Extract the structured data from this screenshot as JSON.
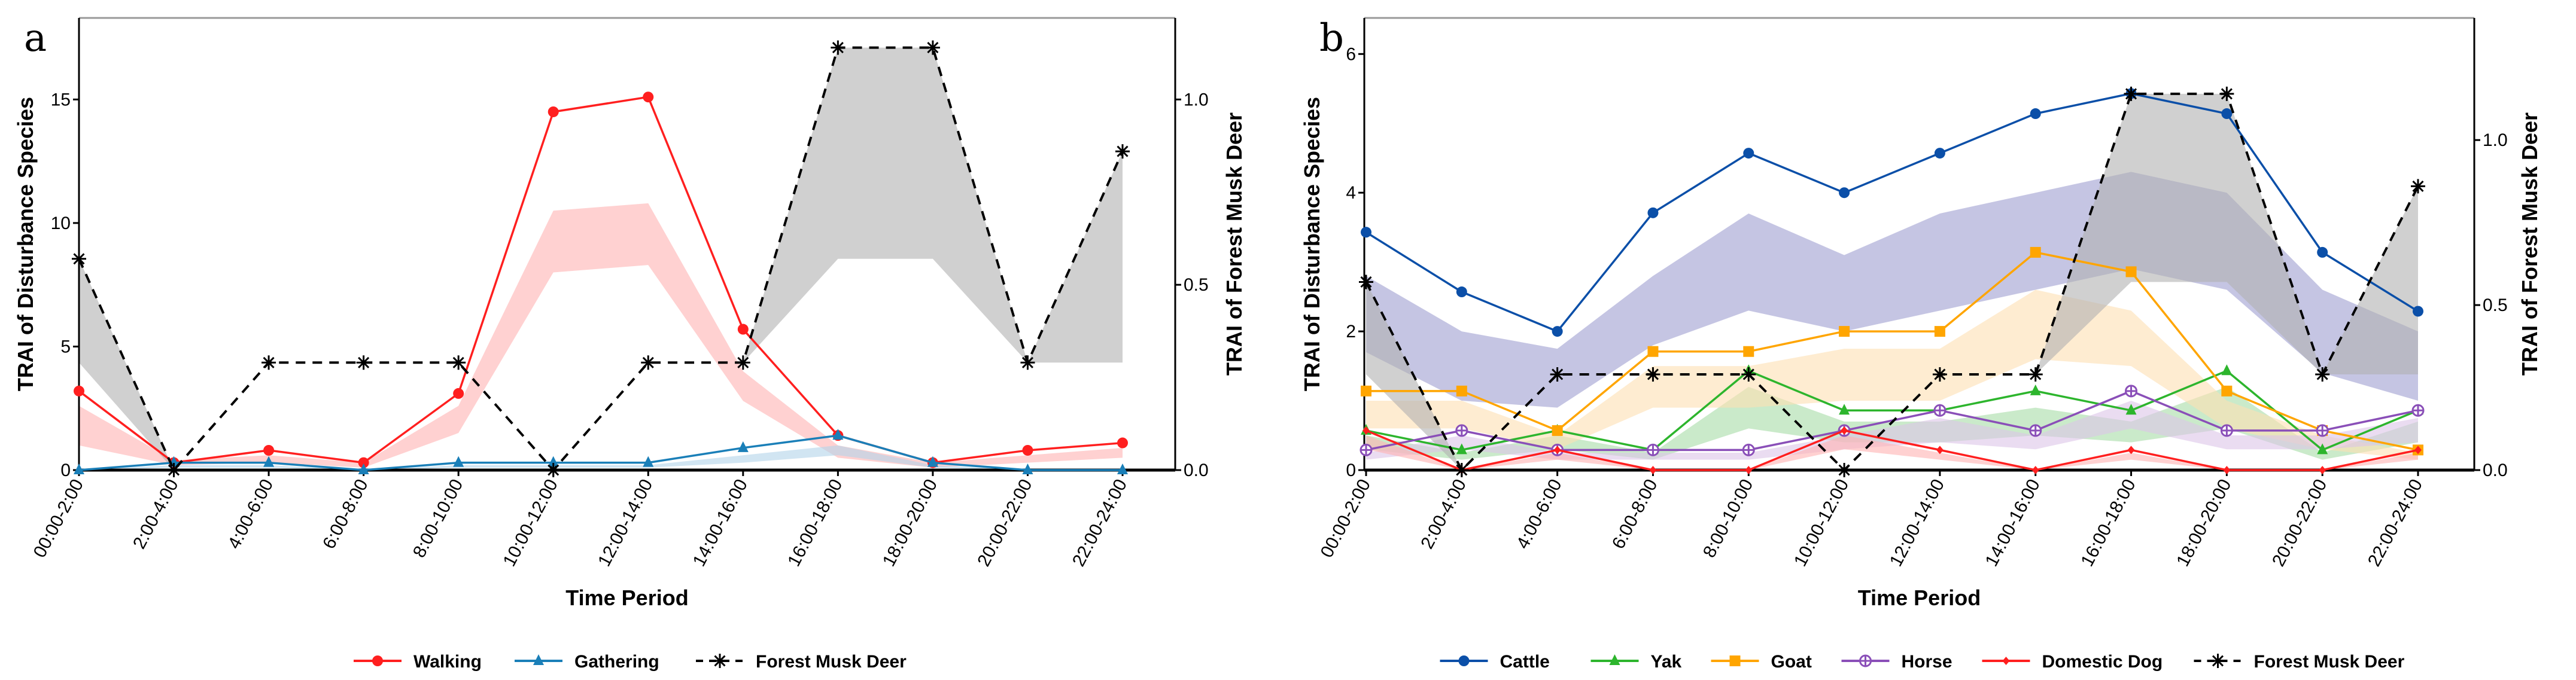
{
  "chart_data": [
    {
      "type": "line",
      "panel_label": "a",
      "xlabel": "Time Period",
      "ylabel": "TRAI of Disturbance Species",
      "y2label": "TRAI of Forest Musk Deer",
      "categories": [
        "00:00-2:00",
        "2:00-4:00",
        "4:00-6:00",
        "6:00-8:00",
        "8:00-10:00",
        "10:00-12:00",
        "12:00-14:00",
        "14:00-16:00",
        "16:00-18:00",
        "18:00-20:00",
        "20:00-22:00",
        "22:00-24:00"
      ],
      "ylim": [
        0,
        18.3
      ],
      "yticks": [
        0,
        5,
        10,
        15
      ],
      "y2lim": [
        0,
        1.22
      ],
      "y2ticks": [
        "0.0",
        "0.5",
        "1.0"
      ],
      "legend_position": "bottom",
      "series": [
        {
          "name": "Walking",
          "axis": "left",
          "color": "#ff1f1f",
          "marker": "circle",
          "dashed": false,
          "values": [
            3.2,
            0.3,
            0.8,
            0.3,
            3.1,
            14.5,
            15.1,
            5.7,
            1.4,
            0.3,
            0.8,
            1.1
          ],
          "band_lower": [
            1.0,
            0.2,
            0.3,
            0.1,
            1.5,
            8.0,
            8.3,
            2.8,
            0.5,
            0.1,
            0.3,
            0.5
          ],
          "band_upper": [
            2.6,
            0.4,
            0.6,
            0.3,
            2.6,
            10.5,
            10.8,
            4.0,
            1.0,
            0.3,
            0.6,
            0.9
          ],
          "band_color": "#ffb3b3"
        },
        {
          "name": "Gathering",
          "axis": "left",
          "color": "#1a7fb8",
          "marker": "triangle",
          "dashed": false,
          "values": [
            0,
            0.3,
            0.3,
            0,
            0.3,
            0.3,
            0.3,
            0.9,
            1.4,
            0.3,
            0,
            0
          ],
          "band_lower": [
            0,
            0.1,
            0.1,
            0,
            0.1,
            0.1,
            0.1,
            0.3,
            0.6,
            0.1,
            0,
            0
          ],
          "band_upper": [
            0,
            0.2,
            0.2,
            0,
            0.2,
            0.2,
            0.2,
            0.6,
            1.0,
            0.2,
            0,
            0
          ],
          "band_color": "#b3d4ea"
        },
        {
          "name": "Forest Musk Deer",
          "axis": "right",
          "color": "#000000",
          "marker": "asterisk",
          "dashed": true,
          "values": [
            0.57,
            0,
            0.29,
            0.29,
            0.29,
            0,
            0.29,
            0.29,
            1.14,
            1.14,
            0.29,
            0.86
          ],
          "band_lower": [
            0.29,
            0,
            0.29,
            0.29,
            0.29,
            0,
            0.29,
            0.29,
            0.57,
            0.57,
            0.29,
            0.29
          ],
          "band_upper": [
            0.57,
            0,
            0.29,
            0.29,
            0.29,
            0,
            0.29,
            0.29,
            1.14,
            1.14,
            0.29,
            0.86
          ],
          "band_color": "#b0b0b0"
        }
      ]
    },
    {
      "type": "line",
      "panel_label": "b",
      "xlabel": "Time Period",
      "ylabel": "TRAI of Disturbance Species",
      "y2label": "TRAI of Forest Musk Deer",
      "categories": [
        "00:00-2:00",
        "2:00-4:00",
        "4:00-6:00",
        "6:00-8:00",
        "8:00-10:00",
        "10:00-12:00",
        "12:00-14:00",
        "14:00-16:00",
        "16:00-18:00",
        "18:00-20:00",
        "20:00-22:00",
        "22:00-24:00"
      ],
      "ylim": [
        0,
        6.52
      ],
      "yticks": [
        0,
        2,
        4,
        6
      ],
      "y2lim": [
        0,
        1.37
      ],
      "y2ticks": [
        "0.0",
        "0.5",
        "1.0"
      ],
      "legend_position": "bottom",
      "series": [
        {
          "name": "Cattle",
          "axis": "left",
          "color": "#0b4fa8",
          "marker": "circle",
          "dashed": false,
          "values": [
            3.43,
            2.57,
            2.0,
            3.71,
            4.57,
            4.0,
            4.57,
            5.14,
            5.43,
            5.14,
            3.14,
            2.29
          ],
          "band_lower": [
            1.7,
            1.0,
            0.9,
            1.8,
            2.3,
            2.0,
            2.3,
            2.6,
            2.9,
            2.6,
            1.4,
            1.0
          ],
          "band_upper": [
            2.8,
            2.0,
            1.75,
            2.8,
            3.7,
            3.1,
            3.7,
            4.0,
            4.3,
            4.0,
            2.6,
            2.0
          ],
          "band_color": "#9f9fd0"
        },
        {
          "name": "Yak",
          "axis": "left",
          "color": "#2db52d",
          "marker": "triangle",
          "dashed": false,
          "values": [
            0.57,
            0.29,
            0.57,
            0.29,
            1.43,
            0.86,
            0.86,
            1.14,
            0.86,
            1.43,
            0.29,
            0.86
          ],
          "band_lower": [
            0.3,
            0.15,
            0.3,
            0.15,
            0.6,
            0.4,
            0.4,
            0.5,
            0.4,
            0.6,
            0.15,
            0.4
          ],
          "band_upper": [
            0.5,
            0.25,
            0.5,
            0.25,
            1.2,
            0.7,
            0.7,
            0.9,
            0.7,
            1.2,
            0.25,
            0.7
          ],
          "band_color": "#a6dca6"
        },
        {
          "name": "Goat",
          "axis": "left",
          "color": "#ffa500",
          "marker": "square",
          "dashed": false,
          "values": [
            1.14,
            1.14,
            0.57,
            1.71,
            1.71,
            2.0,
            2.0,
            3.14,
            2.86,
            1.14,
            0.57,
            0.29
          ],
          "band_lower": [
            0.6,
            0.6,
            0.3,
            0.9,
            0.9,
            1.0,
            1.0,
            1.6,
            1.5,
            0.6,
            0.3,
            0.15
          ],
          "band_upper": [
            1.0,
            1.0,
            0.5,
            1.5,
            1.5,
            1.75,
            1.75,
            2.6,
            2.3,
            1.0,
            0.5,
            0.25
          ],
          "band_color": "#fde0b3"
        },
        {
          "name": "Horse",
          "axis": "left",
          "color": "#8a4fb8",
          "marker": "diamond",
          "dashed": false,
          "values": [
            0.29,
            0.57,
            0.29,
            0.29,
            0.29,
            0.57,
            0.86,
            0.57,
            1.14,
            0.57,
            0.57,
            0.86
          ],
          "band_lower": [
            0.15,
            0.3,
            0.15,
            0.15,
            0.15,
            0.3,
            0.4,
            0.3,
            0.6,
            0.3,
            0.3,
            0.4
          ],
          "band_upper": [
            0.25,
            0.5,
            0.25,
            0.25,
            0.25,
            0.5,
            0.75,
            0.5,
            1.0,
            0.5,
            0.5,
            0.75
          ],
          "band_color": "#dcc4e8"
        },
        {
          "name": "Domestic Dog",
          "axis": "left",
          "color": "#ff1f1f",
          "marker": "smalldiamond",
          "dashed": false,
          "values": [
            0.57,
            0,
            0.29,
            0,
            0,
            0.57,
            0.29,
            0,
            0.29,
            0,
            0,
            0.29
          ],
          "band_lower": [
            0.3,
            0,
            0.15,
            0,
            0,
            0.3,
            0.15,
            0,
            0.15,
            0,
            0,
            0.15
          ],
          "band_upper": [
            0.5,
            0,
            0.25,
            0,
            0,
            0.5,
            0.25,
            0,
            0.25,
            0,
            0,
            0.25
          ],
          "band_color": "#ffb3b3"
        },
        {
          "name": "Forest Musk Deer",
          "axis": "right",
          "color": "#000000",
          "marker": "asterisk",
          "dashed": true,
          "values": [
            0.57,
            0,
            0.29,
            0.29,
            0.29,
            0,
            0.29,
            0.29,
            1.14,
            1.14,
            0.29,
            0.86
          ],
          "band_lower": [
            0.29,
            0,
            0.29,
            0.29,
            0.29,
            0,
            0.29,
            0.29,
            0.57,
            0.57,
            0.29,
            0.29
          ],
          "band_upper": [
            0.57,
            0,
            0.29,
            0.29,
            0.29,
            0,
            0.29,
            0.29,
            1.14,
            1.14,
            0.29,
            0.86
          ],
          "band_color": "#b0b0b0"
        }
      ]
    }
  ]
}
